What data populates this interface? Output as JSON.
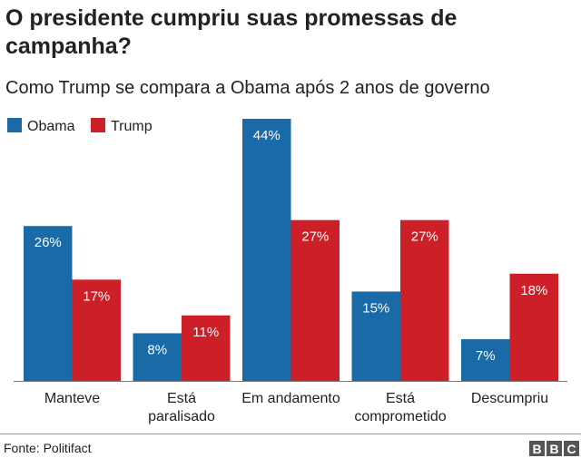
{
  "chart_data": {
    "type": "bar",
    "title": "O presidente cumpriu suas promessas de campanha?",
    "subtitle": "Como Trump se compara a Obama após 2 anos de governo",
    "categories": [
      "Manteve",
      "Está paralisado",
      "Em andamento",
      "Está comprometido",
      "Descumpriu"
    ],
    "series": [
      {
        "name": "Obama",
        "color": "#1a6aa8",
        "values": [
          26,
          8,
          44,
          15,
          7
        ],
        "value_labels": [
          "26%",
          "8%",
          "44%",
          "15%",
          "7%"
        ]
      },
      {
        "name": "Trump",
        "color": "#cc1f27",
        "values": [
          17,
          11,
          27,
          27,
          18
        ],
        "value_labels": [
          "17%",
          "11%",
          "27%",
          "27%",
          "18%"
        ]
      }
    ],
    "legend": "top-left",
    "source": "Fonte: Politifact",
    "logo": [
      "B",
      "B",
      "C"
    ]
  }
}
